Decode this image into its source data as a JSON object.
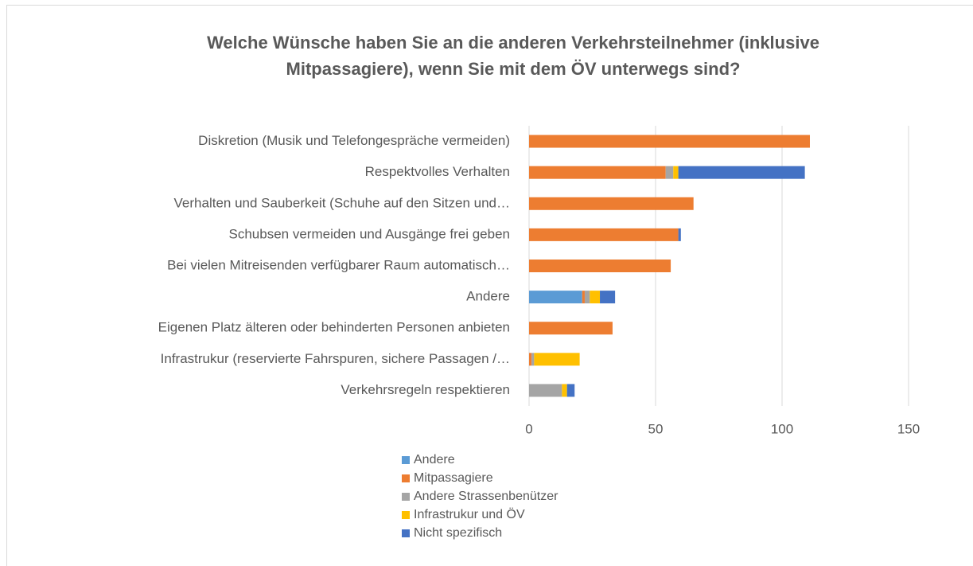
{
  "chart_data": {
    "type": "stacked-bar-horizontal",
    "title_lines": [
      "Welche Wünsche haben Sie an die anderen Verkehrsteilnehmer (inklusive",
      "Mitpassagiere), wenn Sie mit dem ÖV unterwegs sind?"
    ],
    "categories": [
      "Diskretion (Musik und Telefongespräche vermeiden)",
      "Respektvolles Verhalten",
      "Verhalten und Sauberkeit (Schuhe auf den Sitzen und…",
      "Schubsen vermeiden und Ausgänge frei geben",
      "Bei vielen Mitreisenden verfügbarer Raum automatisch…",
      "Andere",
      "Eigenen Platz älteren oder behinderten Personen anbieten",
      "Infrastrukur (reservierte Fahrspuren, sichere Passagen /…",
      "Verkehrsregeln respektieren"
    ],
    "series": [
      {
        "name": "Andere",
        "color": "#5b9bd5",
        "values": [
          0,
          0,
          0,
          0,
          0,
          21,
          0,
          0,
          0
        ]
      },
      {
        "name": "Mitpassagiere",
        "color": "#ed7d31",
        "values": [
          111,
          54,
          65,
          59,
          56,
          1,
          33,
          1,
          0
        ]
      },
      {
        "name": "Andere Strassenbenützer",
        "color": "#a5a5a5",
        "values": [
          0,
          3,
          0,
          0,
          0,
          2,
          0,
          1,
          13
        ]
      },
      {
        "name": "Infrastrukur und ÖV",
        "color": "#ffc000",
        "values": [
          0,
          2,
          0,
          0,
          0,
          4,
          0,
          18,
          2
        ]
      },
      {
        "name": "Nicht spezifisch",
        "color": "#4472c4",
        "values": [
          0,
          50,
          0,
          1,
          0,
          6,
          0,
          0,
          3
        ]
      }
    ],
    "xlim": [
      0,
      150
    ],
    "xticks": [
      0,
      50,
      100,
      150
    ],
    "grid": true,
    "legend": "bottom"
  }
}
